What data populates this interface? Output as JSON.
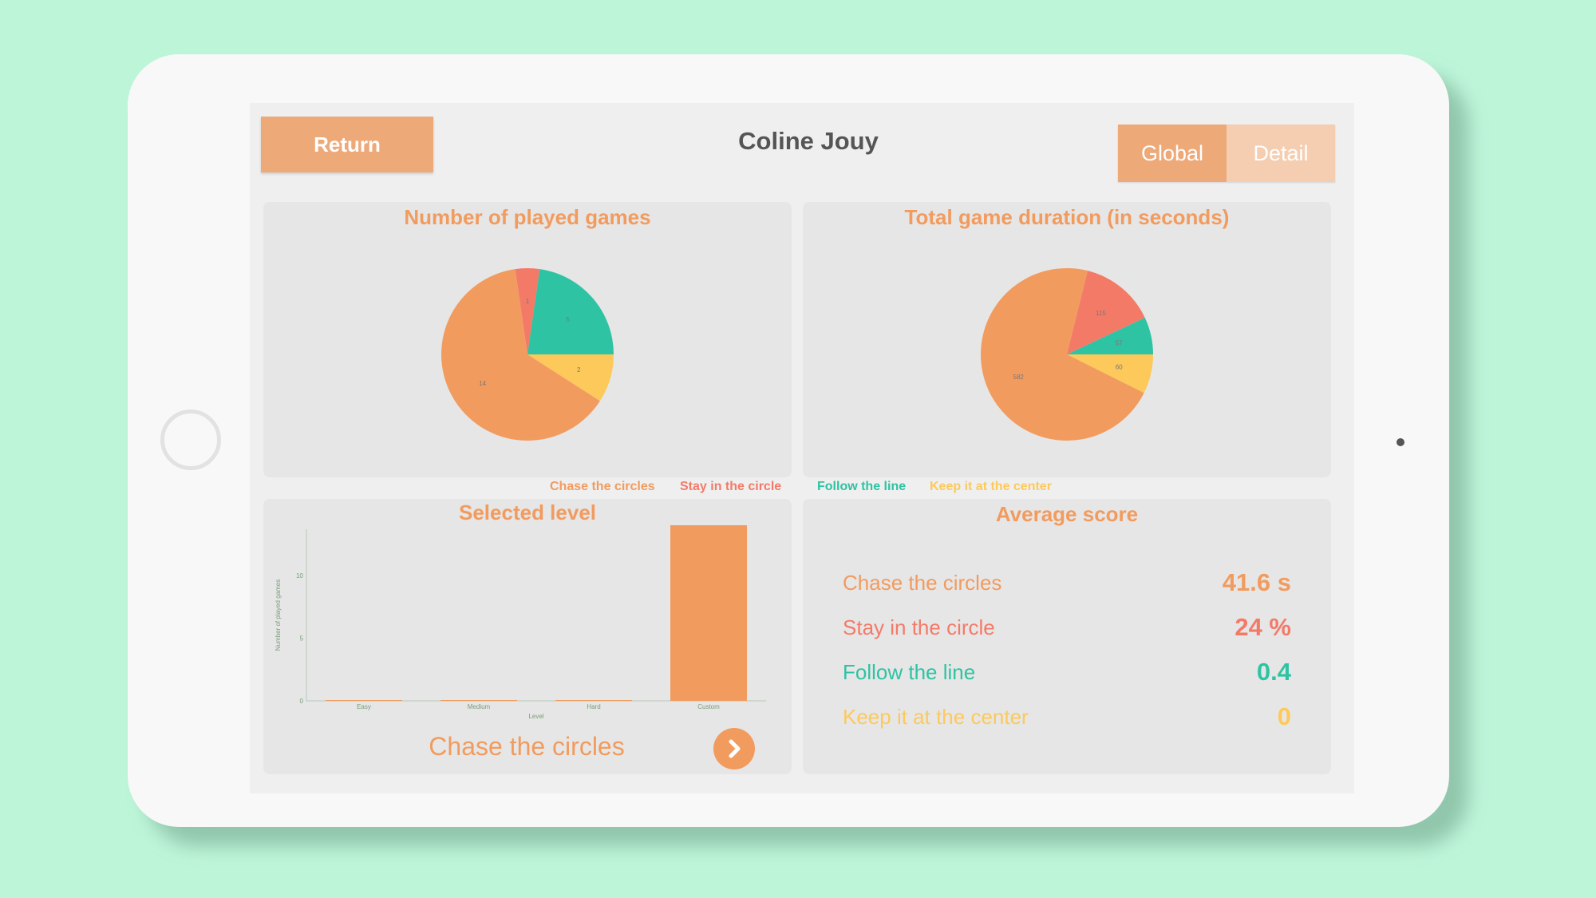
{
  "header": {
    "return_label": "Return",
    "player_name": "Coline Jouy",
    "view_tabs": [
      "Global",
      "Detail"
    ],
    "active_tab": "Global"
  },
  "colors": {
    "chase": "#f29b5e",
    "stay": "#f47a68",
    "follow": "#2ec3a3",
    "keep": "#fdc95b",
    "button": "#eea979"
  },
  "games": [
    "Chase the circles",
    "Stay in the circle",
    "Follow the line",
    "Keep it at the center"
  ],
  "panels": {
    "played_title": "Number of played games",
    "duration_title": "Total game duration (in seconds)",
    "level_title": "Selected level",
    "score_title": "Average score"
  },
  "level_panel": {
    "game_name": "Chase the circles",
    "next_icon": "chevron-right-icon"
  },
  "scores": [
    {
      "label": "Chase the circles",
      "value": "41.6 s"
    },
    {
      "label": "Stay in the circle",
      "value": "24 %"
    },
    {
      "label": "Follow the line",
      "value": "0.4"
    },
    {
      "label": "Keep it at the center",
      "value": "0"
    }
  ],
  "chart_data": [
    {
      "type": "pie",
      "title": "Number of played games",
      "labels": [
        "Chase the circles",
        "Stay in the circle",
        "Follow the line",
        "Keep it at the center"
      ],
      "values": [
        14,
        1,
        5,
        2
      ]
    },
    {
      "type": "pie",
      "title": "Total game duration (in seconds)",
      "labels": [
        "Chase the circles",
        "Stay in the circle",
        "Follow the line",
        "Keep it at the center"
      ],
      "values": [
        582,
        115,
        57,
        60
      ]
    },
    {
      "type": "bar",
      "title": "Selected level",
      "categories": [
        "Easy",
        "Medium",
        "Hard",
        "Custom"
      ],
      "values": [
        0,
        0,
        0,
        14
      ],
      "xlabel": "Level",
      "ylabel": "Number of played games",
      "yticks": [
        0,
        5,
        10
      ],
      "ylim": [
        0,
        14
      ],
      "grid": false
    }
  ]
}
